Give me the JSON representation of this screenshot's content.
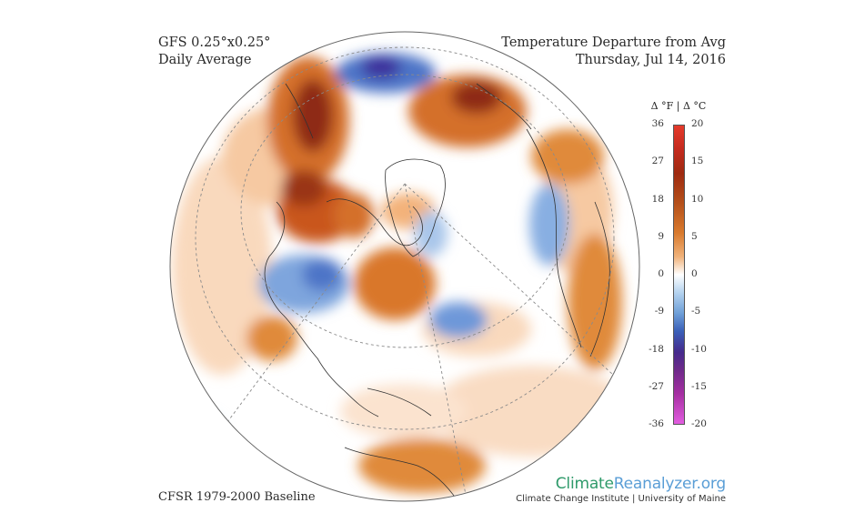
{
  "header": {
    "left_line1": "GFS 0.25°x0.25°",
    "left_line2": "Daily Average",
    "right_line1": "Temperature Departure from Avg",
    "right_line2": "Thursday, Jul 14, 2016"
  },
  "footer": {
    "baseline": "CFSR 1979-2000 Baseline",
    "brand_part1": "Climate",
    "brand_part2": "Reanalyzer.org",
    "brand_sub": "Climate Change Institute | University of Maine"
  },
  "legend": {
    "title": "Δ °F | Δ °C",
    "fahrenheit_ticks": [
      "36",
      "27",
      "18",
      "9",
      "0",
      "-9",
      "-18",
      "-27",
      "-36"
    ],
    "celsius_ticks": [
      "20",
      "15",
      "10",
      "5",
      "0",
      "-5",
      "-10",
      "-15",
      "-20"
    ],
    "range_f": [
      -36,
      36
    ],
    "range_c": [
      -20,
      20
    ]
  },
  "colors": {
    "warm_strong": "#8e2a12",
    "warm": "#d9772c",
    "warm_light": "#f7cda6",
    "neutral": "#ffffff",
    "cool_light": "#bcd6ef",
    "cool": "#4d75c7",
    "cool_strong": "#3d2e9b"
  }
}
